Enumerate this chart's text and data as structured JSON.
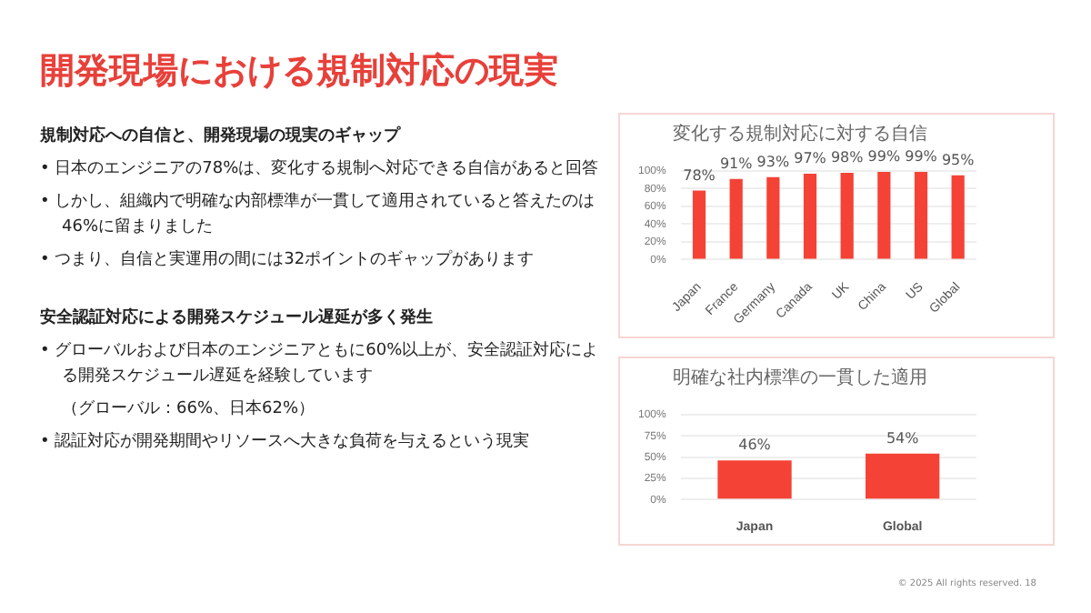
{
  "chart_data": [
    {
      "type": "other",
      "title": "開発現場における規制対応の現実",
      "annotations": [
        "規制対応への自信と、開発現場の現実のギャップ",
        "• 日本のエンジニアの78%は、変化する規制へ対応できる自信があると回答",
        "• しかし、組織内で明確な内部標準が一貫して適用されていると答えたのは46%に留まりました",
        "• つまり、自信と実運用の間には32ポイントのギャップがあります",
        "安全認証対応による開発スケジュール遅延が多く発生",
        "• グローバルおよび日本のエンジニアともに60%以上が、安全認証対応による開発スケジュール遅延を経験しています",
        "（グローバル：66%、日本62%）",
        "• 認証対応が開発期間やリソースへ大きな負荷を与えるという現実",
        "© 2025 All rights reserved.",
        "18"
      ]
    },
    {
      "type": "bar",
      "title": "変化する規制対応に対する自信",
      "categories": [
        "Japan",
        "France",
        "Germany",
        "Canada",
        "UK",
        "China",
        "US",
        "Global"
      ],
      "values": [
        78,
        91,
        93,
        97,
        98,
        99,
        99,
        95
      ],
      "color": "#f44336",
      "value_labels": [
        "78%",
        "91%",
        "93%",
        "97%",
        "98%",
        "99%",
        "99%",
        "95%"
      ],
      "ylim": [
        0,
        100
      ],
      "yticks": [
        {
          "value": 0,
          "label": "0%"
        },
        {
          "value": 20,
          "label": "20%"
        },
        {
          "value": 40,
          "label": "40%"
        },
        {
          "value": 60,
          "label": "60%"
        },
        {
          "value": 80,
          "label": "80%"
        },
        {
          "value": 100,
          "label": "100%"
        }
      ],
      "grid": "y",
      "legend": false
    },
    {
      "type": "bar",
      "title": "明確な社内標準の一貫した適用",
      "categories": [
        "Japan",
        "Global"
      ],
      "values": [
        46,
        54
      ],
      "color": "#f44336",
      "value_labels": [
        "46%",
        "54%"
      ],
      "ylim": [
        0,
        100
      ],
      "yticks": [
        {
          "value": 0,
          "label": "0%"
        },
        {
          "value": 25,
          "label": "25%"
        },
        {
          "value": 50,
          "label": "50%"
        },
        {
          "value": 75,
          "label": "75%"
        },
        {
          "value": 100,
          "label": "100%"
        }
      ],
      "grid": "y",
      "legend": false
    }
  ]
}
